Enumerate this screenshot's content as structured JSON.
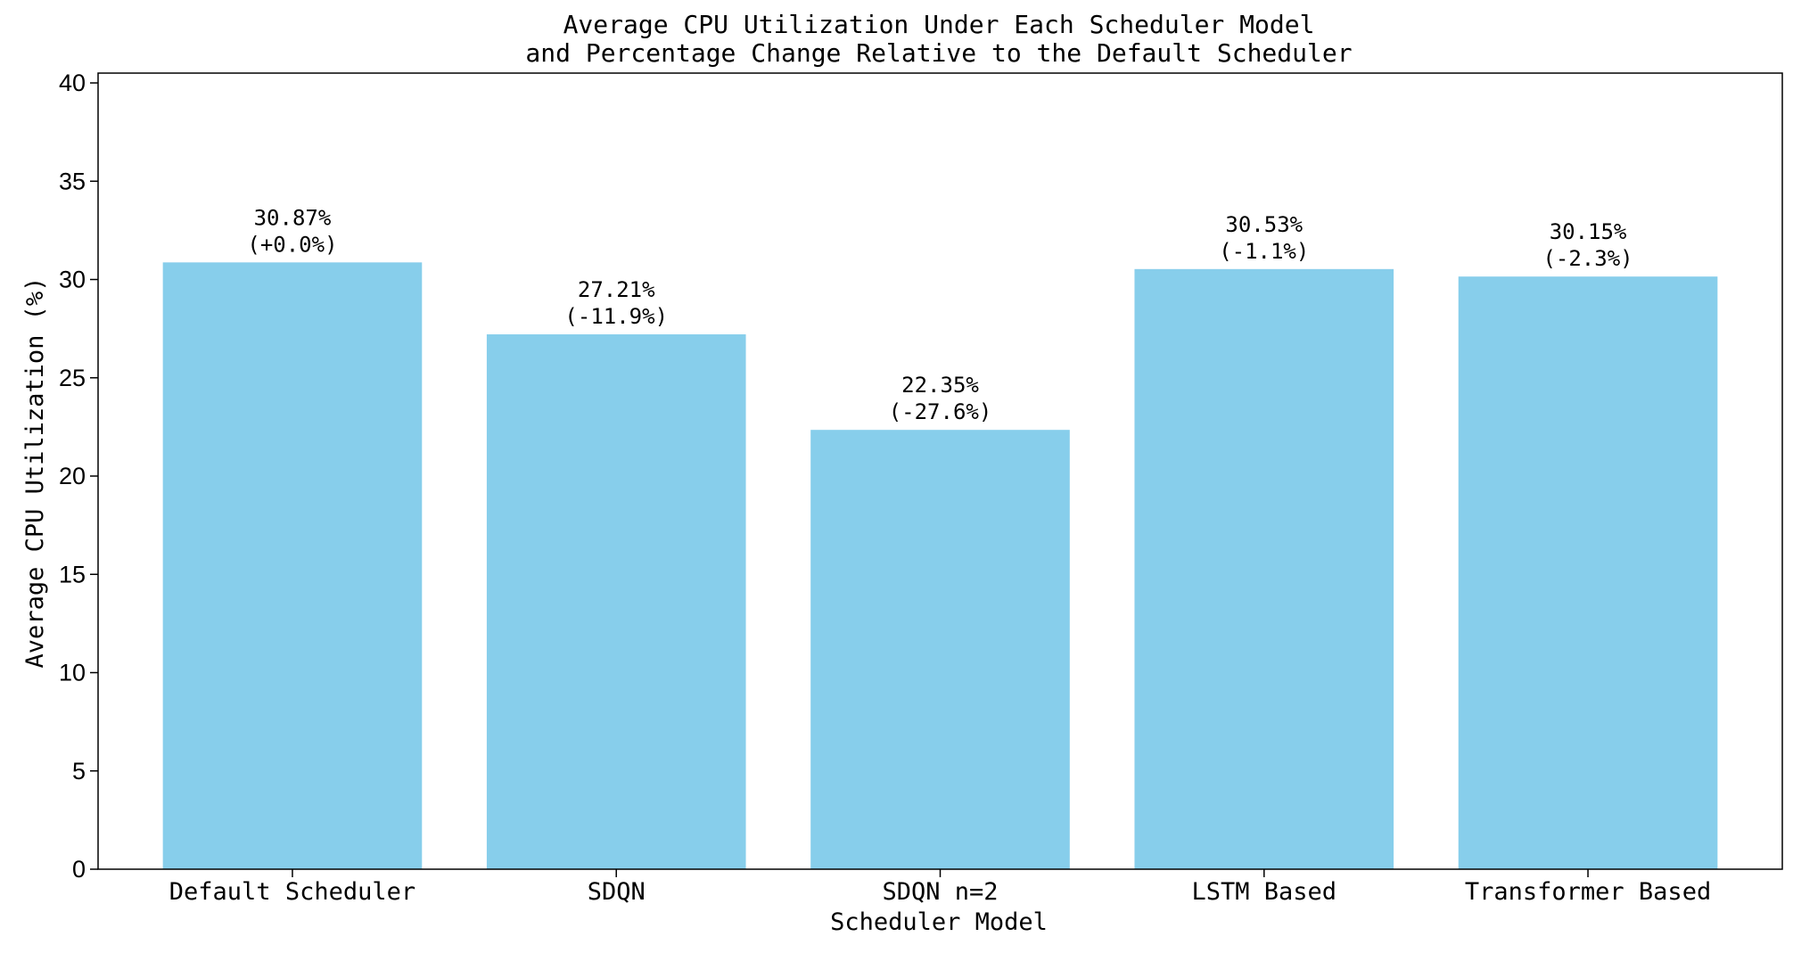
{
  "chart_data": {
    "type": "bar",
    "title_lines": [
      "Average CPU Utilization Under Each Scheduler Model",
      "and Percentage Change Relative to the Default Scheduler"
    ],
    "xlabel": "Scheduler Model",
    "ylabel": "Average CPU Utilization (%)",
    "categories": [
      "Default Scheduler",
      "SDQN",
      "SDQN n=2",
      "LSTM Based",
      "Transformer Based"
    ],
    "values": [
      30.87,
      27.21,
      22.35,
      30.53,
      30.15
    ],
    "value_labels": [
      "30.87%",
      "27.21%",
      "22.35%",
      "30.53%",
      "30.15%"
    ],
    "change_labels": [
      "(+0.0%)",
      "(-11.9%)",
      "(-27.6%)",
      "(-1.1%)",
      "(-2.3%)"
    ],
    "ylim": [
      0,
      40.5
    ],
    "yticks": [
      0,
      5,
      10,
      15,
      20,
      25,
      30,
      35,
      40
    ],
    "bar_color": "#87CEEB",
    "grid": false,
    "legend": false
  }
}
